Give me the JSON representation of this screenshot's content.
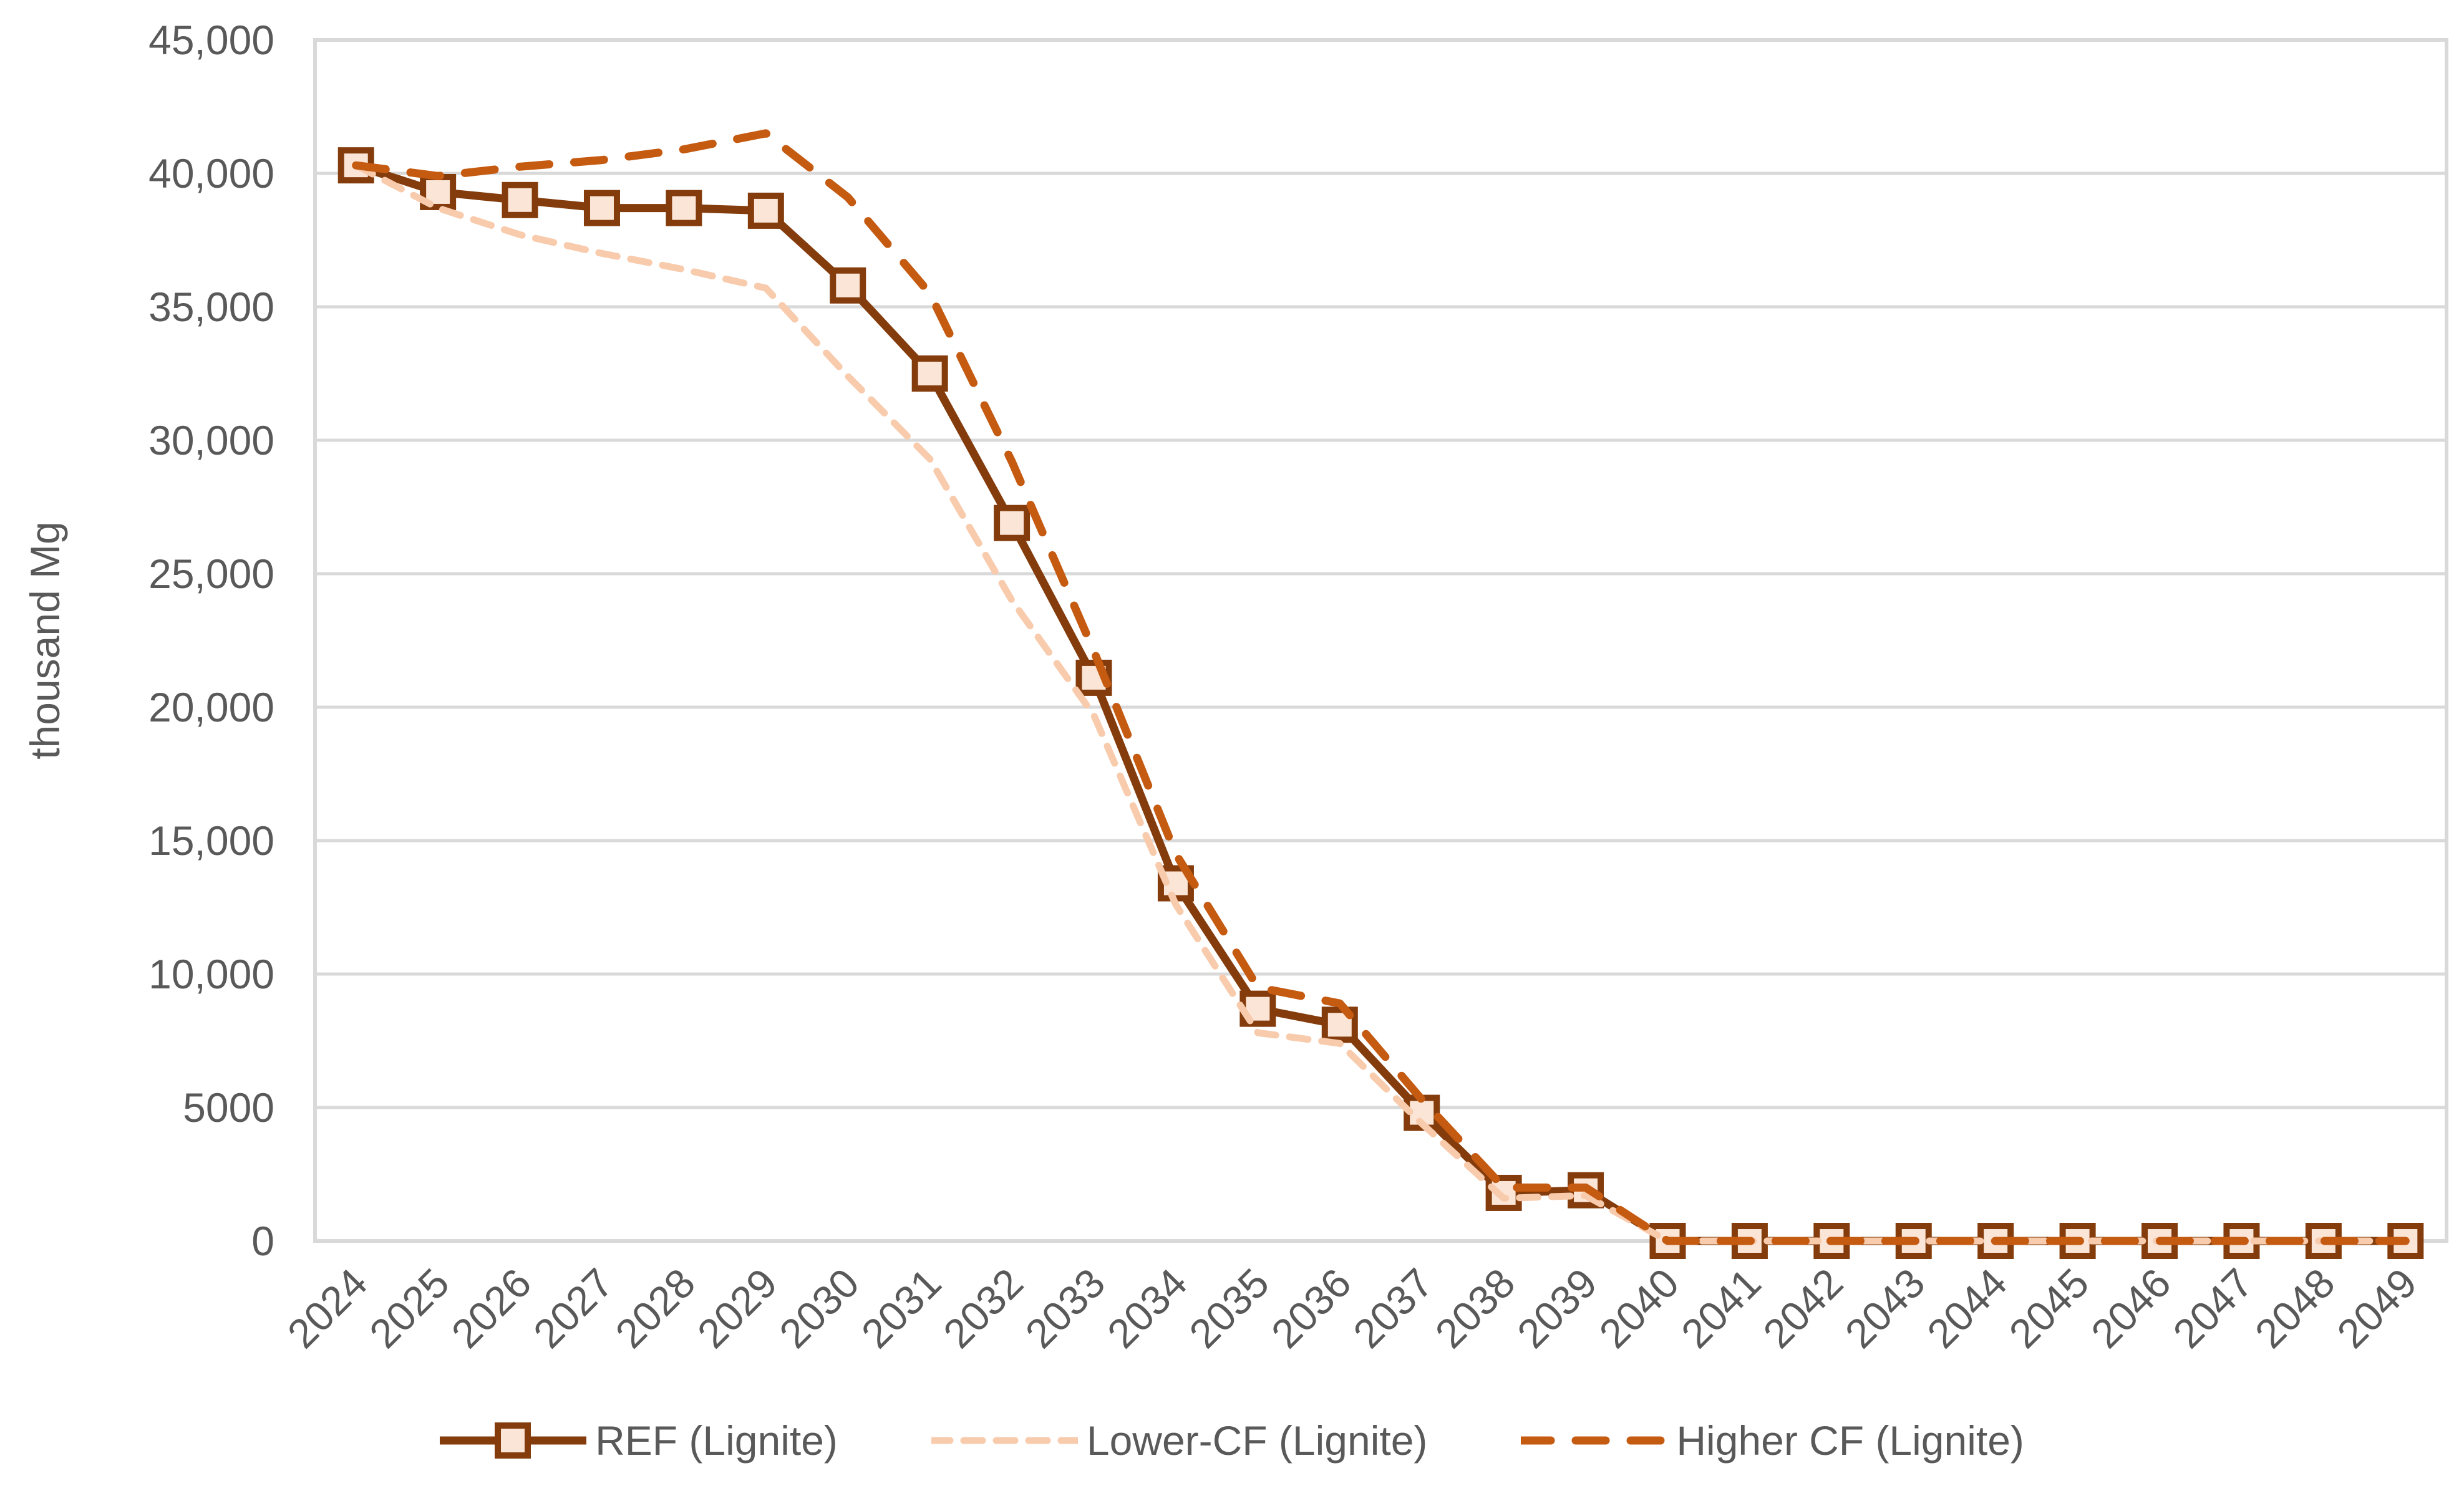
{
  "chart_data": {
    "type": "line",
    "title": "",
    "xlabel": "",
    "ylabel": "thousand Mg",
    "ylim": [
      0,
      45000
    ],
    "ytick_step": 5000,
    "ytick_labels": [
      "0",
      "5000",
      "10,000",
      "15,000",
      "20,000",
      "25,000",
      "30,000",
      "35,000",
      "40,000",
      "45,000"
    ],
    "grid": "horizontal",
    "legend_position": "bottom",
    "categories": [
      "2024",
      "2025",
      "2026",
      "2027",
      "2028",
      "2029",
      "2030",
      "2031",
      "2032",
      "2033",
      "2034",
      "2035",
      "2036",
      "2037",
      "2038",
      "2039",
      "2040",
      "2041",
      "2042",
      "2043",
      "2044",
      "2045",
      "2046",
      "2047",
      "2048",
      "2049"
    ],
    "series": [
      {
        "name": "REF (Lignite)",
        "color": "#843C0C",
        "style": "solid",
        "marker": "square",
        "marker_fill": "#FBE5D6",
        "values": [
          40300,
          39300,
          39000,
          38700,
          38700,
          38600,
          35800,
          32500,
          26900,
          21100,
          13400,
          8700,
          8100,
          4800,
          1800,
          1900,
          0,
          0,
          0,
          0,
          0,
          0,
          0,
          0,
          0,
          0
        ]
      },
      {
        "name": "Lower-CF (Lignite)",
        "color": "#F8CBAD",
        "style": "dashed-short",
        "marker": "none",
        "values": [
          40300,
          38700,
          37700,
          37000,
          36400,
          35700,
          32400,
          29300,
          24000,
          19700,
          12600,
          7800,
          7400,
          4400,
          1600,
          1700,
          0,
          0,
          0,
          0,
          0,
          0,
          0,
          0,
          0,
          0
        ]
      },
      {
        "name": "Higher CF (Lignite)",
        "color": "#C55A11",
        "style": "dashed-long",
        "marker": "none",
        "values": [
          40300,
          39900,
          40250,
          40500,
          40900,
          41500,
          39100,
          35500,
          29200,
          22100,
          14500,
          9500,
          8900,
          5300,
          2000,
          2000,
          0,
          0,
          0,
          0,
          0,
          0,
          0,
          0,
          0,
          0
        ]
      }
    ],
    "colors": {
      "gridline": "#D9D9D9",
      "plot_border": "#D9D9D9",
      "tick_text": "#595959"
    }
  }
}
